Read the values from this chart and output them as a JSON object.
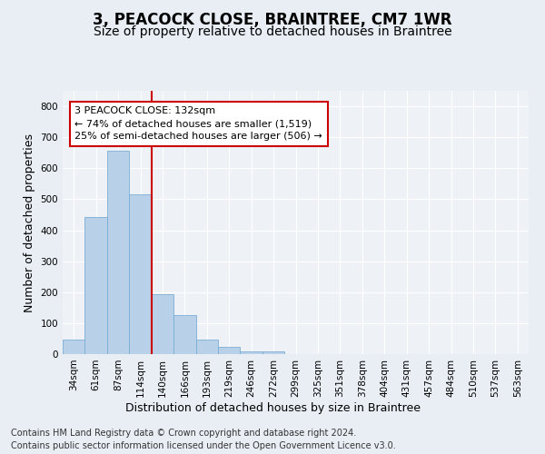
{
  "title": "3, PEACOCK CLOSE, BRAINTREE, CM7 1WR",
  "subtitle": "Size of property relative to detached houses in Braintree",
  "xlabel": "Distribution of detached houses by size in Braintree",
  "ylabel": "Number of detached properties",
  "bins": [
    "34sqm",
    "61sqm",
    "87sqm",
    "114sqm",
    "140sqm",
    "166sqm",
    "193sqm",
    "219sqm",
    "246sqm",
    "272sqm",
    "299sqm",
    "325sqm",
    "351sqm",
    "378sqm",
    "404sqm",
    "431sqm",
    "457sqm",
    "484sqm",
    "510sqm",
    "537sqm",
    "563sqm"
  ],
  "values": [
    47,
    443,
    657,
    517,
    193,
    125,
    47,
    24,
    9,
    9,
    0,
    0,
    0,
    0,
    0,
    0,
    0,
    0,
    0,
    0,
    0
  ],
  "bar_color": "#b8d0e8",
  "bar_edge_color": "#7aadd4",
  "vline_color": "#cc0000",
  "vline_x_index": 3.5,
  "annotation_text": "3 PEACOCK CLOSE: 132sqm\n← 74% of detached houses are smaller (1,519)\n25% of semi-detached houses are larger (506) →",
  "annotation_box_color": "#ffffff",
  "annotation_box_edge": "#cc0000",
  "ylim": [
    0,
    850
  ],
  "yticks": [
    0,
    100,
    200,
    300,
    400,
    500,
    600,
    700,
    800
  ],
  "footer_line1": "Contains HM Land Registry data © Crown copyright and database right 2024.",
  "footer_line2": "Contains public sector information licensed under the Open Government Licence v3.0.",
  "bg_color": "#e8eef4",
  "plot_bg_color": "#eef2f7",
  "title_fontsize": 12,
  "subtitle_fontsize": 10,
  "axis_label_fontsize": 9,
  "tick_fontsize": 7.5,
  "annotation_fontsize": 8,
  "footer_fontsize": 7
}
